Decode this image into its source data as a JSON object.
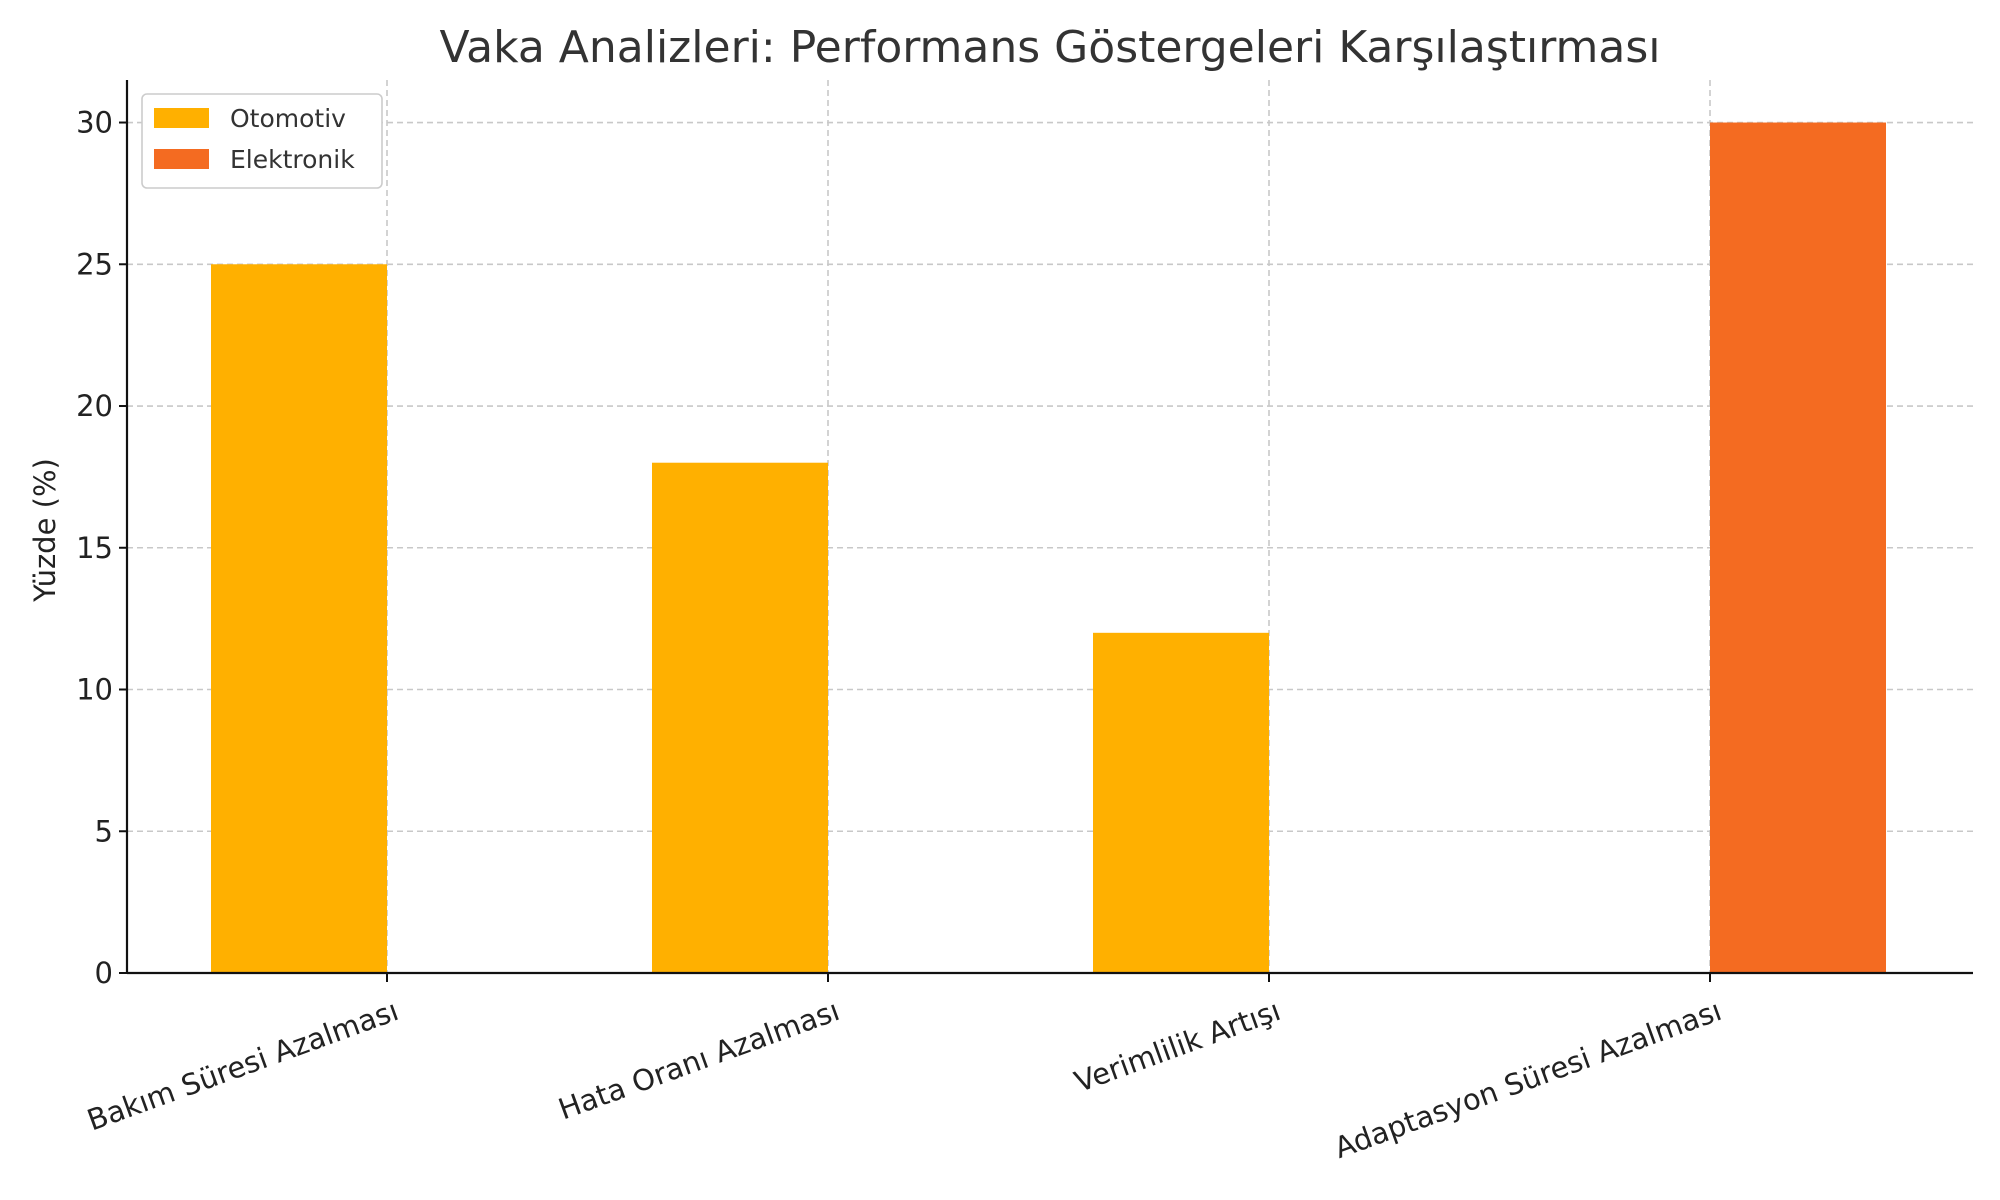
{
  "chart_data": {
    "type": "bar",
    "title": "Vaka Analizleri: Performans Göstergeleri Karşılaştırması",
    "xlabel": "",
    "ylabel": "Yüzde (%)",
    "ylim": [
      0,
      31.5
    ],
    "yticks": [
      0,
      5,
      10,
      15,
      20,
      25,
      30
    ],
    "grid": true,
    "legend_position": "top-left",
    "categories": [
      "Bakım Süresi Azalması",
      "Hata Oranı Azalması",
      "Verimlilik Artışı",
      "Adaptasyon Süresi Azalması"
    ],
    "series": [
      {
        "name": "Otomotiv",
        "color": "#FFB000",
        "values": [
          25,
          18,
          12,
          null
        ]
      },
      {
        "name": "Elektronik",
        "color": "#F46B21",
        "values": [
          null,
          null,
          null,
          30
        ]
      }
    ]
  }
}
